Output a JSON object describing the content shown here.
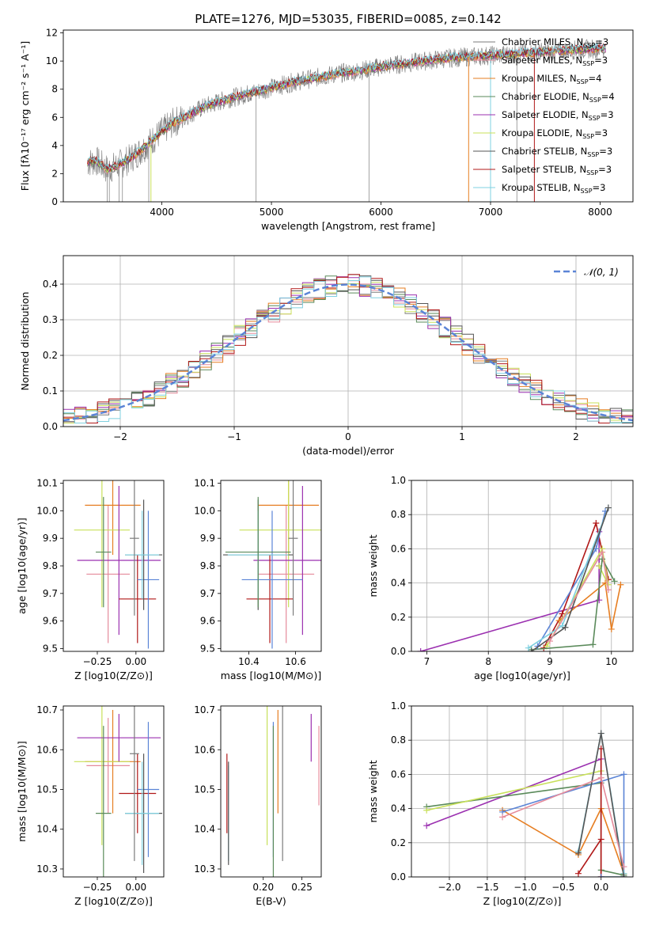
{
  "figure_title": "PLATE=1276, MJD=53035, FIBERID=0085, z=0.142",
  "colors": {
    "chabrier_miles": "#7b7b7b",
    "salpeter_miles": "#e58b9b",
    "kroupa_miles": "#e67e22",
    "chabrier_elodie": "#5a8a5a",
    "salpeter_elodie": "#9b30b0",
    "kroupa_elodie": "#c8e05a",
    "chabrier_stelib": "#555555",
    "salpeter_stelib": "#b01818",
    "kroupa_stelib": "#7fd0e0",
    "blue": "#5b84d6",
    "grid": "#b0b0b0",
    "axes": "#000000"
  },
  "chart_data": [
    {
      "id": "spectrum",
      "type": "line",
      "xlabel": "wavelength [Angstrom, rest frame]",
      "ylabel": "Flux [fλ10⁻¹⁷ erg cm⁻² s⁻¹ A⁻¹]",
      "xlim": [
        3100,
        8300
      ],
      "ylim": [
        0,
        12.2
      ],
      "xticks": [
        4000,
        5000,
        6000,
        7000,
        8000
      ],
      "yticks": [
        0,
        2,
        4,
        6,
        8,
        10,
        12
      ],
      "grid": false,
      "legend_position": "top-right",
      "legend": [
        "Chabrier MILES, N_SSP=3",
        "Salpeter MILES, N_SSP=3",
        "Kroupa MILES, N_SSP=4",
        "Chabrier ELODIE, N_SSP=4",
        "Salpeter ELODIE, N_SSP=3",
        "Kroupa ELODIE, N_SSP=3",
        "Chabrier STELIB, N_SSP=3",
        "Salpeter STELIB, N_SSP=3",
        "Kroupa STELIB, N_SSP=3"
      ],
      "continuum": {
        "x": [
          3320,
          3400,
          3500,
          3600,
          3700,
          3800,
          3900,
          4000,
          4100,
          4200,
          4400,
          4600,
          4800,
          5000,
          5200,
          5400,
          5600,
          5800,
          6000,
          6200,
          6400,
          6600,
          6800,
          7000,
          7200,
          7400,
          7600,
          7800,
          8000,
          8050
        ],
        "y": [
          2.8,
          2.9,
          2.3,
          2.6,
          3.0,
          3.6,
          4.3,
          5.0,
          5.6,
          6.0,
          6.8,
          7.3,
          7.7,
          8.1,
          8.5,
          8.8,
          9.1,
          9.3,
          9.6,
          9.8,
          10.0,
          10.2,
          10.3,
          10.4,
          10.5,
          10.6,
          10.7,
          10.8,
          10.9,
          10.9
        ]
      }
    },
    {
      "id": "residual-histogram",
      "type": "histogram",
      "xlabel": "(data-model)/error",
      "ylabel": "Normed distribution",
      "xlim": [
        -2.5,
        2.5
      ],
      "ylim": [
        0,
        0.48
      ],
      "xticks": [
        -2,
        -1,
        0,
        1,
        2
      ],
      "yticks": [
        0.0,
        0.1,
        0.2,
        0.3,
        0.4
      ],
      "grid": true,
      "bin_width": 0.1,
      "legend": [
        "𝒩(0, 1)"
      ],
      "legend_position": "top-right",
      "reference_curve": "normal(0,1)",
      "n_histograms": 9
    },
    {
      "id": "age-vs-Z",
      "type": "errorbar",
      "xlabel": "Z [log10(Z/Z⊙)]",
      "ylabel": "age  [log10(age/yr)]",
      "xlim": [
        -0.47,
        0.18
      ],
      "ylim": [
        9.49,
        10.11
      ],
      "xticks": [
        -0.25,
        0.0
      ],
      "yticks": [
        9.5,
        9.6,
        9.7,
        9.8,
        9.9,
        10.0,
        10.1
      ],
      "points": [
        {
          "x": -0.18,
          "y": 9.77,
          "xerr": 0.14,
          "yerr": 0.25,
          "c": "salpeter_miles"
        },
        {
          "x": -0.15,
          "y": 10.02,
          "xerr": 0.18,
          "yerr": 0.18,
          "c": "kroupa_miles"
        },
        {
          "x": -0.22,
          "y": 9.93,
          "xerr": 0.18,
          "yerr": 0.28,
          "c": "kroupa_elodie"
        },
        {
          "x": -0.11,
          "y": 9.82,
          "xerr": 0.27,
          "yerr": 0.27,
          "c": "salpeter_elodie"
        },
        {
          "x": 0.01,
          "y": 9.68,
          "xerr": 0.12,
          "yerr": 0.16,
          "c": "salpeter_stelib"
        },
        {
          "x": 0.08,
          "y": 9.75,
          "xerr": 0.07,
          "yerr": 0.25,
          "c": "blue"
        },
        {
          "x": 0.05,
          "y": 9.84,
          "xerr": 0.12,
          "yerr": 0.2,
          "c": "chabrier_stelib"
        },
        {
          "x": 0.04,
          "y": 9.84,
          "xerr": 0.11,
          "yerr": 0.16,
          "c": "kroupa_stelib"
        },
        {
          "x": -0.21,
          "y": 9.85,
          "xerr": 0.05,
          "yerr": 0.2,
          "c": "chabrier_elodie"
        },
        {
          "x": -0.01,
          "y": 9.9,
          "xerr": 0.03,
          "yerr": 0.28,
          "c": "chabrier_miles"
        }
      ]
    },
    {
      "id": "age-vs-mass",
      "type": "errorbar",
      "xlabel": "mass [log10(M/M⊙)]",
      "ylabel": "",
      "xlim": [
        10.28,
        10.71
      ],
      "ylim": [
        9.49,
        10.11
      ],
      "xticks": [
        10.4,
        10.6
      ],
      "yticks": [
        9.5,
        9.6,
        9.7,
        9.8,
        9.9,
        10.0,
        10.1
      ],
      "points": [
        {
          "x": 10.56,
          "y": 9.77,
          "xerr": 0.12,
          "yerr": 0.25,
          "c": "salpeter_miles"
        },
        {
          "x": 10.57,
          "y": 10.02,
          "xerr": 0.13,
          "yerr": 0.18,
          "c": "kroupa_miles"
        },
        {
          "x": 10.57,
          "y": 9.93,
          "xerr": 0.21,
          "yerr": 0.28,
          "c": "kroupa_elodie"
        },
        {
          "x": 10.63,
          "y": 9.82,
          "xerr": 0.21,
          "yerr": 0.27,
          "c": "salpeter_elodie"
        },
        {
          "x": 10.49,
          "y": 9.68,
          "xerr": 0.1,
          "yerr": 0.16,
          "c": "salpeter_stelib"
        },
        {
          "x": 10.5,
          "y": 9.75,
          "xerr": 0.13,
          "yerr": 0.25,
          "c": "blue"
        },
        {
          "x": 10.44,
          "y": 9.84,
          "xerr": 0.15,
          "yerr": 0.2,
          "c": "chabrier_stelib"
        },
        {
          "x": 10.44,
          "y": 9.84,
          "xerr": 0.13,
          "yerr": 0.16,
          "c": "kroupa_stelib"
        },
        {
          "x": 10.44,
          "y": 9.85,
          "xerr": 0.14,
          "yerr": 0.2,
          "c": "chabrier_elodie"
        },
        {
          "x": 10.59,
          "y": 9.9,
          "xerr": 0.02,
          "yerr": 0.28,
          "c": "chabrier_miles"
        }
      ]
    },
    {
      "id": "weight-vs-age",
      "type": "line",
      "xlabel": "age  [log10(age/yr)]",
      "ylabel": "mass weight",
      "xlim": [
        6.75,
        10.35
      ],
      "ylim": [
        0,
        1.0
      ],
      "xticks": [
        7,
        8,
        9,
        10
      ],
      "yticks": [
        0.0,
        0.2,
        0.4,
        0.6,
        0.8,
        1.0
      ],
      "grid": true,
      "series": [
        {
          "c": "salpeter_elodie",
          "x": [
            6.9,
            9.8,
            9.8,
            9.8
          ],
          "y": [
            0.0,
            0.3,
            0.7,
            0.5
          ]
        },
        {
          "c": "salpeter_stelib",
          "x": [
            8.9,
            9.2,
            9.75,
            9.95
          ],
          "y": [
            0.02,
            0.22,
            0.75,
            0.42
          ]
        },
        {
          "c": "kroupa_miles",
          "x": [
            9.15,
            9.9,
            10.0,
            10.15
          ],
          "y": [
            0.18,
            0.4,
            0.13,
            0.39
          ]
        },
        {
          "c": "kroupa_elodie",
          "x": [
            8.95,
            9.85,
            9.95,
            9.8
          ],
          "y": [
            0.03,
            0.6,
            0.39,
            0.5
          ]
        },
        {
          "c": "chabrier_elodie",
          "x": [
            8.7,
            9.7,
            9.85,
            10.05
          ],
          "y": [
            0.01,
            0.04,
            0.54,
            0.41
          ]
        },
        {
          "c": "blue",
          "x": [
            8.8,
            9.75,
            9.9
          ],
          "y": [
            0.03,
            0.6,
            0.82
          ]
        },
        {
          "c": "kroupa_stelib",
          "x": [
            8.65,
            9.2,
            9.95
          ],
          "y": [
            0.02,
            0.15,
            0.84
          ]
        },
        {
          "c": "chabrier_stelib",
          "x": [
            8.7,
            9.25,
            9.95
          ],
          "y": [
            0.0,
            0.14,
            0.84
          ]
        },
        {
          "c": "salpeter_miles",
          "x": [
            9.0,
            9.85,
            9.95
          ],
          "y": [
            0.06,
            0.58,
            0.36
          ]
        }
      ]
    },
    {
      "id": "mass-vs-Z",
      "type": "errorbar",
      "xlabel": "Z [log10(Z/Z⊙)]",
      "ylabel": "mass [log10(M/M⊙)]",
      "xlim": [
        -0.47,
        0.18
      ],
      "ylim": [
        10.28,
        10.71
      ],
      "xticks": [
        -0.25,
        0.0
      ],
      "yticks": [
        10.3,
        10.4,
        10.5,
        10.6,
        10.7
      ],
      "points": [
        {
          "x": -0.18,
          "y": 10.56,
          "xerr": 0.14,
          "yerr": 0.12,
          "c": "salpeter_miles"
        },
        {
          "x": -0.15,
          "y": 10.57,
          "xerr": 0.18,
          "yerr": 0.13,
          "c": "kroupa_miles"
        },
        {
          "x": -0.22,
          "y": 10.57,
          "xerr": 0.18,
          "yerr": 0.21,
          "c": "kroupa_elodie"
        },
        {
          "x": -0.11,
          "y": 10.63,
          "xerr": 0.27,
          "yerr": 0.06,
          "c": "salpeter_elodie"
        },
        {
          "x": 0.01,
          "y": 10.49,
          "xerr": 0.12,
          "yerr": 0.1,
          "c": "salpeter_stelib"
        },
        {
          "x": 0.08,
          "y": 10.5,
          "xerr": 0.07,
          "yerr": 0.17,
          "c": "blue"
        },
        {
          "x": 0.05,
          "y": 10.44,
          "xerr": 0.12,
          "yerr": 0.15,
          "c": "chabrier_stelib"
        },
        {
          "x": 0.04,
          "y": 10.44,
          "xerr": 0.11,
          "yerr": 0.13,
          "c": "kroupa_stelib"
        },
        {
          "x": -0.21,
          "y": 10.44,
          "xerr": 0.05,
          "yerr": 0.22,
          "c": "chabrier_elodie"
        },
        {
          "x": -0.01,
          "y": 10.59,
          "xerr": 0.03,
          "yerr": 0.27,
          "c": "chabrier_miles"
        }
      ]
    },
    {
      "id": "mass-vs-ebv",
      "type": "errorbar",
      "xlabel": "E(B-V)",
      "ylabel": "",
      "xlim": [
        0.145,
        0.275
      ],
      "ylim": [
        10.28,
        10.71
      ],
      "xticks": [
        0.2,
        0.25
      ],
      "yticks": [
        10.3,
        10.4,
        10.5,
        10.6,
        10.7
      ],
      "points": [
        {
          "x": 0.153,
          "y": 10.49,
          "xerr": 0,
          "yerr": 0.1,
          "c": "salpeter_stelib"
        },
        {
          "x": 0.155,
          "y": 10.44,
          "xerr": 0,
          "yerr": 0.12,
          "c": "kroupa_stelib"
        },
        {
          "x": 0.155,
          "y": 10.44,
          "xerr": 0,
          "yerr": 0.13,
          "c": "chabrier_stelib"
        },
        {
          "x": 0.205,
          "y": 10.57,
          "xerr": 0,
          "yerr": 0.21,
          "c": "kroupa_elodie"
        },
        {
          "x": 0.213,
          "y": 10.5,
          "xerr": 0,
          "yerr": 0.17,
          "c": "blue"
        },
        {
          "x": 0.213,
          "y": 10.44,
          "xerr": 0,
          "yerr": 0.22,
          "c": "chabrier_elodie"
        },
        {
          "x": 0.219,
          "y": 10.57,
          "xerr": 0,
          "yerr": 0.13,
          "c": "kroupa_miles"
        },
        {
          "x": 0.225,
          "y": 10.59,
          "xerr": 0,
          "yerr": 0.27,
          "c": "chabrier_miles"
        },
        {
          "x": 0.262,
          "y": 10.63,
          "xerr": 0,
          "yerr": 0.06,
          "c": "salpeter_elodie"
        },
        {
          "x": 0.272,
          "y": 10.56,
          "xerr": 0,
          "yerr": 0.1,
          "c": "salpeter_miles"
        }
      ]
    },
    {
      "id": "weight-vs-Z",
      "type": "line",
      "xlabel": "Z [log10(Z/Z⊙)]",
      "ylabel": "mass weight",
      "xlim": [
        -2.5,
        0.42
      ],
      "ylim": [
        0,
        1.0
      ],
      "xticks": [
        -2.0,
        -1.5,
        -1.0,
        -0.5,
        0.0
      ],
      "yticks": [
        0.0,
        0.2,
        0.4,
        0.6,
        0.8,
        1.0
      ],
      "grid": true,
      "series": [
        {
          "c": "salpeter_elodie",
          "x": [
            -2.3,
            0.0,
            0.0,
            0.0
          ],
          "y": [
            0.3,
            0.69,
            0.0,
            0.0
          ]
        },
        {
          "c": "chabrier_elodie",
          "x": [
            -2.3,
            0.0,
            0.0,
            0.3
          ],
          "y": [
            0.41,
            0.55,
            0.04,
            0.01
          ]
        },
        {
          "c": "kroupa_elodie",
          "x": [
            -2.3,
            0.0,
            0.0,
            0.3
          ],
          "y": [
            0.39,
            0.62,
            0.0,
            0.0
          ]
        },
        {
          "c": "kroupa_miles",
          "x": [
            -1.3,
            -0.3,
            0.0,
            0.3
          ],
          "y": [
            0.39,
            0.13,
            0.4,
            0.02
          ]
        },
        {
          "c": "salpeter_stelib",
          "x": [
            -0.3,
            0.0,
            0.0,
            0.0
          ],
          "y": [
            0.02,
            0.22,
            0.75,
            0.0
          ]
        },
        {
          "c": "blue",
          "x": [
            -1.3,
            0.3,
            0.3,
            0.0
          ],
          "y": [
            0.38,
            0.6,
            0.0,
            0.0
          ]
        },
        {
          "c": "kroupa_stelib",
          "x": [
            -0.3,
            0.0,
            0.3
          ],
          "y": [
            0.15,
            0.84,
            0.02
          ]
        },
        {
          "c": "chabrier_stelib",
          "x": [
            -0.3,
            0.0,
            0.3
          ],
          "y": [
            0.14,
            0.84,
            0.0
          ]
        },
        {
          "c": "salpeter_miles",
          "x": [
            -1.3,
            0.0,
            0.3
          ],
          "y": [
            0.35,
            0.58,
            0.06
          ]
        }
      ]
    }
  ]
}
